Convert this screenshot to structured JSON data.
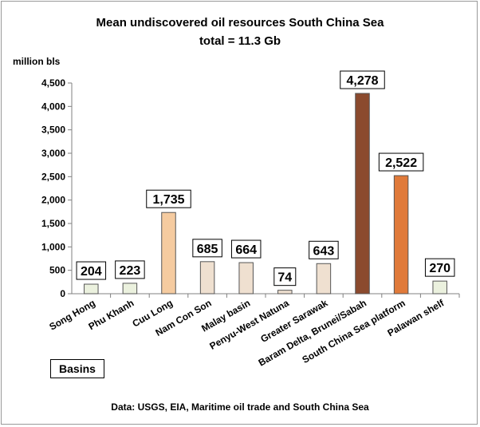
{
  "chart_data": {
    "type": "bar",
    "title": "Mean undiscovered oil resources South China Sea",
    "subtitle": "total = 11.3 Gb",
    "ylabel": "million bls",
    "xlabel": "Basins",
    "source": "Data: USGS, EIA, Maritime oil trade and South China Sea",
    "ylim": [
      0,
      4500
    ],
    "ytick_step": 500,
    "ytick_labels": [
      "0",
      "500",
      "1,000",
      "1,500",
      "2,000",
      "2,500",
      "3,000",
      "3,500",
      "4,000",
      "4,500"
    ],
    "grid": false,
    "categories": [
      "Song Hong",
      "Phu Khanh",
      "Cuu Long",
      "Nam Con Son",
      "Malay basin",
      "Penyu-West Natuna",
      "Greater Sarawak",
      "Baram Delta, Brunei/Sabah",
      "South China Sea platform",
      "Palawan shelf"
    ],
    "values": [
      204,
      223,
      1735,
      685,
      664,
      74,
      643,
      4278,
      2522,
      270
    ],
    "data_labels": [
      "204",
      "223",
      "1,735",
      "685",
      "664",
      "74",
      "643",
      "4,278",
      "2,522",
      "270"
    ],
    "colors": [
      "#ebf1de",
      "#ebf1de",
      "#f5cba0",
      "#efe0d0",
      "#efe0d0",
      "#efe0d0",
      "#efe0d0",
      "#8b4a2e",
      "#e07a3a",
      "#ebf1de"
    ]
  }
}
